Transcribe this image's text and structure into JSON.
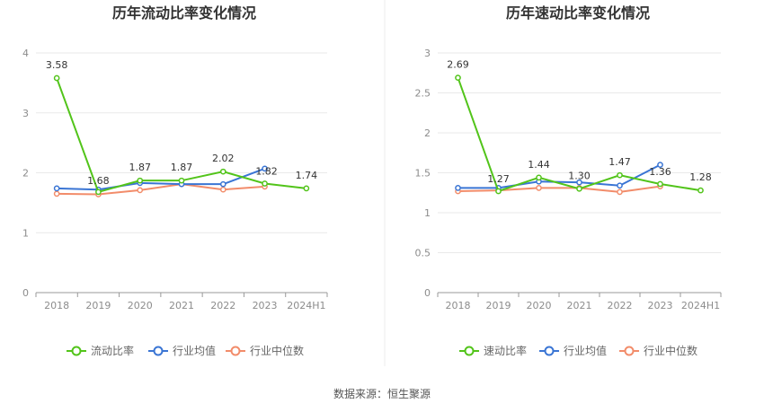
{
  "source": "数据来源：恒生聚源",
  "colors": {
    "main": "#52c41a",
    "avg": "#3a75d4",
    "median": "#f28c6a"
  },
  "chart_data": [
    {
      "type": "line",
      "title": "历年流动比率变化情况",
      "categories": [
        "2018",
        "2019",
        "2020",
        "2021",
        "2022",
        "2023",
        "2024H1"
      ],
      "ylim": [
        0,
        4
      ],
      "yticks": [
        "0",
        "1",
        "2",
        "3",
        "4"
      ],
      "ytick_values": [
        0,
        1,
        2,
        3,
        4
      ],
      "grid": true,
      "legend_position": "bottom",
      "series": [
        {
          "name": "流动比率",
          "values": [
            3.58,
            1.68,
            1.87,
            1.87,
            2.02,
            1.82,
            1.74
          ],
          "labels": [
            "3.58",
            "1.68",
            "1.87",
            "1.87",
            "2.02",
            "1.82",
            "1.74"
          ]
        },
        {
          "name": "行业均值",
          "values": [
            1.74,
            1.72,
            1.83,
            1.81,
            1.81,
            2.07,
            null
          ]
        },
        {
          "name": "行业中位数",
          "values": [
            1.65,
            1.64,
            1.71,
            1.81,
            1.72,
            1.77,
            null
          ]
        }
      ]
    },
    {
      "type": "line",
      "title": "历年速动比率变化情况",
      "categories": [
        "2018",
        "2019",
        "2020",
        "2021",
        "2022",
        "2023",
        "2024H1"
      ],
      "ylim": [
        0,
        3
      ],
      "yticks": [
        "0",
        "0.5",
        "1",
        "1.5",
        "2",
        "2.5",
        "3"
      ],
      "ytick_values": [
        0,
        0.5,
        1,
        1.5,
        2,
        2.5,
        3
      ],
      "grid": true,
      "legend_position": "bottom",
      "series": [
        {
          "name": "速动比率",
          "values": [
            2.69,
            1.27,
            1.44,
            1.3,
            1.47,
            1.36,
            1.28
          ],
          "labels": [
            "2.69",
            "1.27",
            "1.44",
            "1.30",
            "1.47",
            "1.36",
            "1.28"
          ]
        },
        {
          "name": "行业均值",
          "values": [
            1.31,
            1.31,
            1.39,
            1.38,
            1.34,
            1.6,
            null
          ]
        },
        {
          "name": "行业中位数",
          "values": [
            1.27,
            1.28,
            1.31,
            1.31,
            1.26,
            1.33,
            null
          ]
        }
      ]
    }
  ]
}
